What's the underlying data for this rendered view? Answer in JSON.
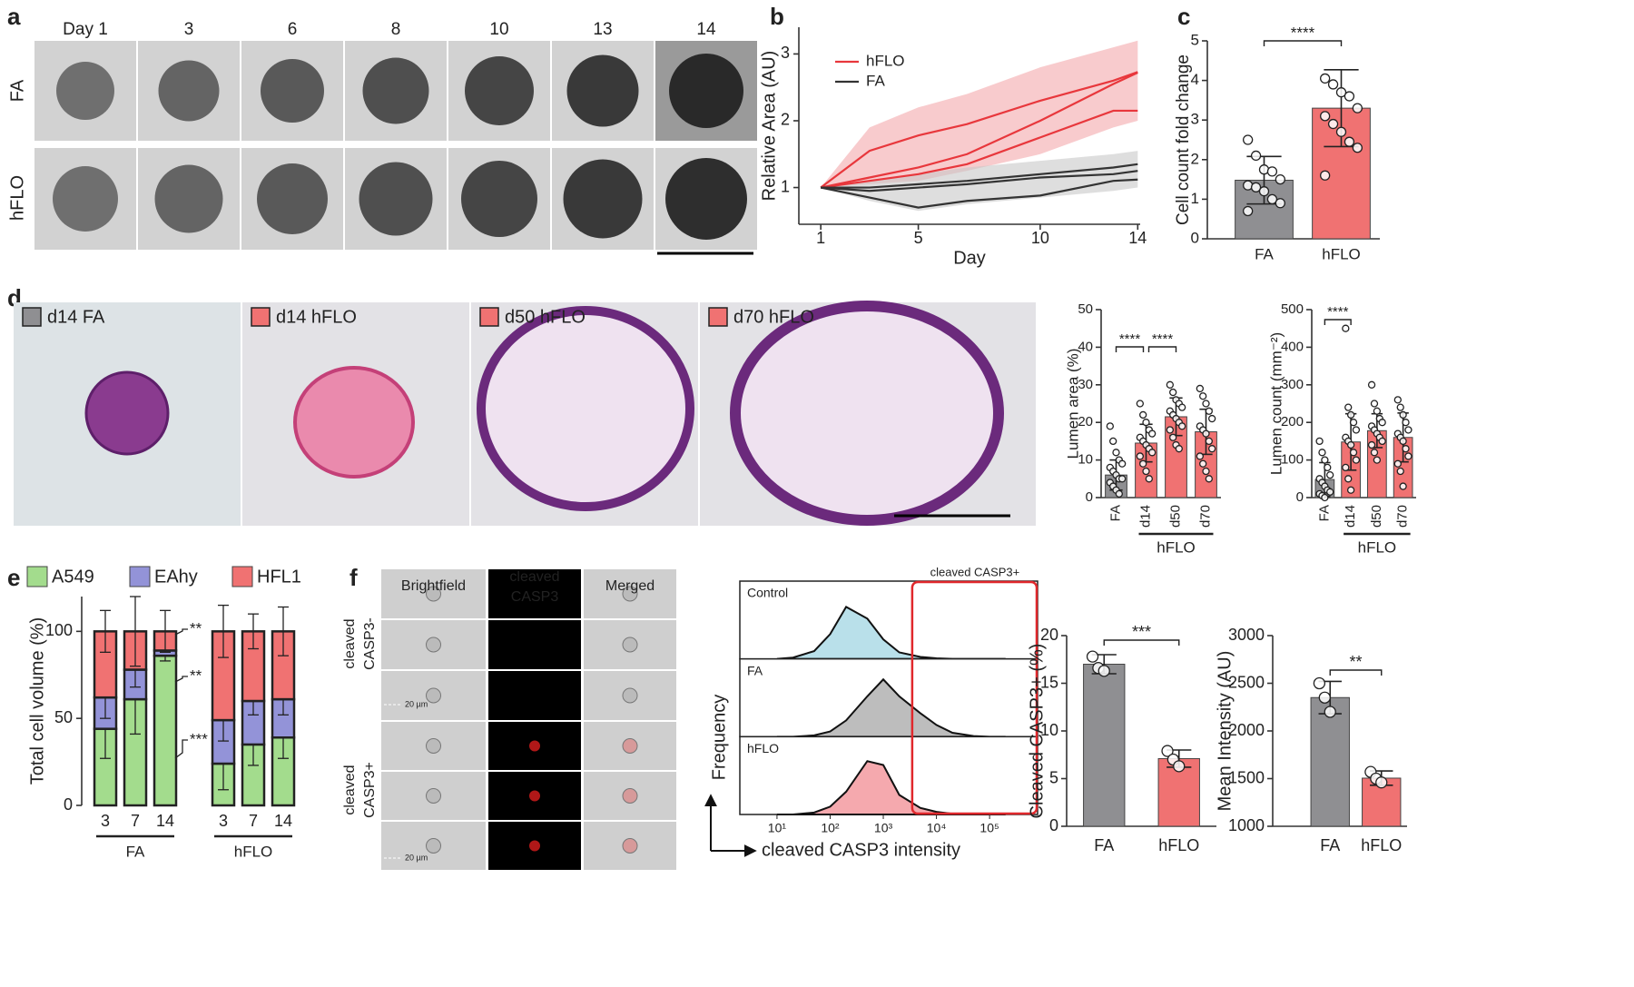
{
  "panel_labels": [
    "a",
    "b",
    "c",
    "d",
    "e",
    "f"
  ],
  "panel_a": {
    "columns": [
      "Day 1",
      "3",
      "6",
      "8",
      "10",
      "13",
      "14"
    ],
    "rows": [
      "FA",
      "hFLO"
    ]
  },
  "panel_d": {
    "images": [
      "d14 FA",
      "d14 hFLO",
      "d50 hFLO",
      "d70 hFLO"
    ]
  },
  "panel_f": {
    "columns": [
      [
        "Brightfield"
      ],
      [
        "cleaved",
        "CASP3"
      ],
      [
        "Merged"
      ]
    ],
    "rows": [
      [
        "cleaved",
        "CASP3-"
      ],
      [
        "cleaved",
        "CASP3+"
      ]
    ],
    "scale_label": "20 µm"
  },
  "chart_data": [
    {
      "type": "line",
      "xlabel": "Day",
      "ylabel": "Relative Area (AU)",
      "x": [
        1,
        3,
        5,
        7,
        10,
        13,
        14
      ],
      "xlim": [
        0.1,
        14.1
      ],
      "xticks": [
        1,
        5,
        10,
        14
      ],
      "ylim": [
        0.45,
        3.4
      ],
      "yticks": [
        1,
        2,
        3
      ],
      "legend": "upper left",
      "series": [
        {
          "name": "hFLO",
          "color": "#e8373c",
          "band_color": "#f4a9ab",
          "lines": [
            [
              1,
              1.55,
              1.78,
              1.95,
              2.3,
              2.6,
              2.73
            ],
            [
              1,
              1.15,
              1.3,
              1.5,
              2.0,
              2.55,
              2.72
            ],
            [
              1,
              1.1,
              1.2,
              1.35,
              1.75,
              2.15,
              2.15
            ]
          ],
          "band_lower": [
            1,
            1.05,
            1.1,
            1.25,
            1.5,
            1.9,
            2.0
          ],
          "band_upper": [
            1,
            1.9,
            2.2,
            2.4,
            2.8,
            3.1,
            3.2
          ]
        },
        {
          "name": "FA",
          "color": "#333333",
          "band_color": "#c8c8c8",
          "lines": [
            [
              1,
              1.0,
              1.05,
              1.1,
              1.2,
              1.3,
              1.35
            ],
            [
              1,
              0.95,
              1.0,
              1.05,
              1.15,
              1.2,
              1.25
            ],
            [
              1,
              0.85,
              0.7,
              0.8,
              0.88,
              1.1,
              1.12
            ]
          ],
          "band_lower": [
            1,
            0.8,
            0.65,
            0.75,
            0.85,
            0.95,
            1.0
          ],
          "band_upper": [
            1,
            1.1,
            1.2,
            1.3,
            1.4,
            1.5,
            1.55
          ]
        }
      ]
    },
    {
      "type": "bar",
      "ylabel": "Cell count fold change",
      "categories": [
        "FA",
        "hFLO"
      ],
      "colors": [
        "#8f8f92",
        "#f07272"
      ],
      "values": [
        1.48,
        3.3
      ],
      "errors": [
        0.6,
        0.97
      ],
      "points": [
        [
          2.5,
          2.1,
          1.75,
          1.7,
          1.5,
          1.35,
          1.3,
          1.2,
          1.0,
          0.9,
          0.7
        ],
        [
          4.05,
          3.9,
          3.7,
          3.6,
          3.3,
          3.1,
          2.9,
          2.7,
          2.45,
          2.3,
          1.6
        ]
      ],
      "ylim": [
        0,
        5
      ],
      "yticks": [
        0,
        1,
        2,
        3,
        4,
        5
      ],
      "significance": [
        "****"
      ]
    },
    {
      "type": "bar",
      "ylabel": "Lumen area (%)",
      "categories": [
        "FA",
        "d14",
        "d50",
        "d70"
      ],
      "group": "hFLO",
      "colors": [
        "#8f8f92",
        "#f07272",
        "#f07272",
        "#f07272"
      ],
      "values": [
        6,
        14.5,
        21.5,
        17.5
      ],
      "errors": [
        4,
        5,
        5,
        6
      ],
      "points": [
        [
          19,
          15,
          12,
          10,
          9,
          8,
          7,
          6,
          5,
          5,
          4,
          3,
          2,
          1
        ],
        [
          25,
          22,
          20,
          18,
          17,
          16,
          15,
          14,
          13,
          12,
          11,
          9,
          7,
          5
        ],
        [
          30,
          28,
          26,
          25,
          24,
          23,
          22,
          21,
          20,
          19,
          18,
          16,
          14,
          13
        ],
        [
          29,
          27,
          25,
          23,
          21,
          19,
          18,
          17,
          15,
          13,
          11,
          9,
          7,
          5
        ]
      ],
      "ylim": [
        0,
        50
      ],
      "yticks": [
        0,
        10,
        20,
        30,
        40,
        50
      ],
      "significance": [
        "****",
        "****"
      ]
    },
    {
      "type": "bar",
      "ylabel": "Lumen count (mm⁻²)",
      "categories": [
        "FA",
        "d14",
        "d50",
        "d70"
      ],
      "group": "hFLO",
      "colors": [
        "#8f8f92",
        "#f07272",
        "#f07272",
        "#f07272"
      ],
      "values": [
        48,
        148,
        178,
        160
      ],
      "errors": [
        45,
        75,
        45,
        65
      ],
      "points": [
        [
          150,
          120,
          100,
          80,
          60,
          50,
          40,
          30,
          20,
          15,
          10,
          5,
          0
        ],
        [
          450,
          240,
          220,
          200,
          180,
          160,
          150,
          140,
          120,
          100,
          80,
          50,
          20
        ],
        [
          300,
          250,
          230,
          210,
          200,
          190,
          180,
          170,
          160,
          150,
          140,
          120,
          100
        ],
        [
          260,
          240,
          220,
          200,
          180,
          170,
          160,
          150,
          130,
          110,
          90,
          70,
          30
        ]
      ],
      "ylim": [
        0,
        500
      ],
      "yticks": [
        0,
        100,
        200,
        300,
        400,
        500
      ],
      "significance": [
        "****"
      ]
    },
    {
      "type": "stacked_bar",
      "ylabel": "Total cell volume (%)",
      "categories": [
        "3",
        "7",
        "14",
        "3",
        "7",
        "14"
      ],
      "groups": [
        "FA",
        "hFLO"
      ],
      "series": [
        {
          "name": "A549",
          "color": "#a3dc8d",
          "values": [
            44,
            61,
            86,
            24,
            35,
            39
          ],
          "errors": [
            17,
            20,
            3,
            15,
            12,
            12
          ]
        },
        {
          "name": "EAhy",
          "color": "#9393d8",
          "values": [
            18,
            17,
            3,
            25,
            25,
            22
          ],
          "errors": [
            12,
            10,
            1,
            12,
            8,
            9
          ]
        },
        {
          "name": "HFL1",
          "color": "#f07272",
          "values": [
            38,
            22,
            11,
            51,
            40,
            39
          ],
          "errors": [
            12,
            20,
            12,
            15,
            10,
            14
          ]
        }
      ],
      "ylim": [
        0,
        120
      ],
      "yticks": [
        0,
        50,
        100
      ],
      "annotations": [
        "**",
        "**",
        "***"
      ]
    },
    {
      "type": "density",
      "xlabel": "cleaved CASP3 intensity",
      "ylabel": "Frequency",
      "xscale": "log",
      "x": [
        10,
        20,
        50,
        100,
        200,
        500,
        1000,
        2000,
        5000,
        10000,
        20000,
        50000,
        100000,
        200000
      ],
      "xlim": [
        2,
        800000
      ],
      "xticks": [
        {
          "value": 10,
          "label": "10¹"
        },
        {
          "value": 100,
          "label": "10²"
        },
        {
          "value": 1000,
          "label": "10³"
        },
        {
          "value": 10000,
          "label": "10⁴"
        },
        {
          "value": 100000,
          "label": "10⁵"
        }
      ],
      "ylim": [
        0,
        100
      ],
      "gate_label": "cleaved CASP3+",
      "gate_from": 3500,
      "series": [
        {
          "name": "Control",
          "color": "#b9e0ea",
          "values": [
            0,
            2,
            12,
            38,
            80,
            62,
            30,
            10,
            3,
            1,
            0,
            0,
            0,
            0
          ]
        },
        {
          "name": "FA",
          "color": "#bdbdbd",
          "values": [
            0,
            0,
            2,
            8,
            25,
            62,
            88,
            62,
            36,
            18,
            6,
            1,
            0,
            0
          ]
        },
        {
          "name": "hFLO",
          "color": "#f5a9ae",
          "values": [
            0,
            0,
            3,
            12,
            35,
            82,
            76,
            30,
            10,
            4,
            1,
            0,
            0,
            0
          ]
        }
      ]
    },
    {
      "type": "bar",
      "ylabel": "Cleaved CASP3+ (%)",
      "categories": [
        "FA",
        "hFLO"
      ],
      "colors": [
        "#8f8f92",
        "#f07272"
      ],
      "values": [
        17,
        7.1
      ],
      "errors": [
        1,
        0.9
      ],
      "points": [
        [
          17.8,
          16.6,
          16.3
        ],
        [
          7.9,
          7.0,
          6.3
        ]
      ],
      "ylim": [
        0,
        20
      ],
      "yticks": [
        0,
        5,
        10,
        15,
        20
      ],
      "significance": [
        "***"
      ]
    },
    {
      "type": "bar",
      "ylabel": "Mean Intensity (AU)",
      "categories": [
        "FA",
        "hFLO"
      ],
      "colors": [
        "#8f8f92",
        "#f07272"
      ],
      "values": [
        2350,
        1505
      ],
      "errors": [
        170,
        75
      ],
      "points": [
        [
          2500,
          2350,
          2200
        ],
        [
          1570,
          1500,
          1460
        ]
      ],
      "ylim": [
        1000,
        3000
      ],
      "yticks": [
        1000,
        1500,
        2000,
        2500,
        3000
      ],
      "significance": [
        "**"
      ]
    }
  ]
}
